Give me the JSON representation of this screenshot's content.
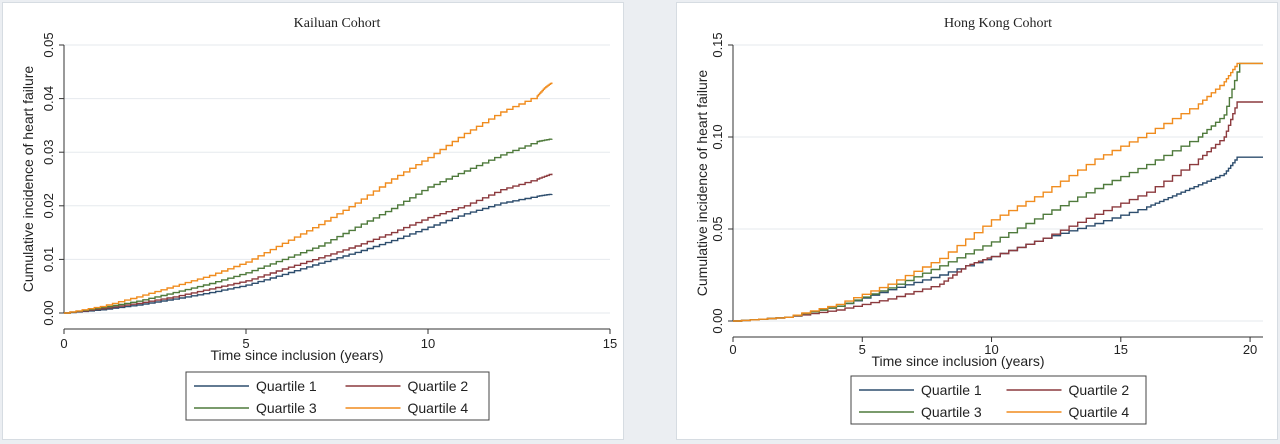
{
  "chart_data": [
    {
      "type": "line",
      "title": "Kailuan Cohort",
      "xlabel": "Time since inclusion (years)",
      "ylabel": "Cumulative incidence of heart failure",
      "xlim": [
        0,
        15
      ],
      "ylim": [
        0,
        0.05
      ],
      "xticks": [
        0,
        5,
        10,
        15
      ],
      "yticks": [
        0,
        0.01,
        0.02,
        0.03,
        0.04,
        0.05
      ],
      "yticklabels": [
        "0.00",
        "0.01",
        "0.02",
        "0.03",
        "0.04",
        "0.05"
      ],
      "grid": true,
      "legend_position": "bottom",
      "series": [
        {
          "name": "Quartile 1",
          "color": "#2e4e6e",
          "x": [
            0,
            1,
            2,
            3,
            4,
            5,
            6,
            7,
            8,
            9,
            10,
            11,
            12,
            13,
            13.4
          ],
          "y": [
            0,
            0.0006,
            0.0015,
            0.0026,
            0.0038,
            0.0052,
            0.0072,
            0.0093,
            0.0113,
            0.0135,
            0.016,
            0.0185,
            0.0205,
            0.0218,
            0.0222
          ]
        },
        {
          "name": "Quartile 2",
          "color": "#8c3a3e",
          "x": [
            0,
            1,
            2,
            3,
            4,
            5,
            6,
            7,
            8,
            9,
            10,
            11,
            12,
            13,
            13.4
          ],
          "y": [
            0,
            0.0008,
            0.0018,
            0.003,
            0.0045,
            0.006,
            0.0082,
            0.0103,
            0.0125,
            0.015,
            0.0178,
            0.02,
            0.023,
            0.025,
            0.026
          ]
        },
        {
          "name": "Quartile 3",
          "color": "#4f7a3c",
          "x": [
            0,
            1,
            2,
            3,
            4,
            5,
            6,
            7,
            8,
            9,
            10,
            11,
            12,
            13,
            13.4
          ],
          "y": [
            0,
            0.001,
            0.0022,
            0.0038,
            0.0055,
            0.0075,
            0.01,
            0.0125,
            0.016,
            0.0195,
            0.0235,
            0.0265,
            0.0295,
            0.032,
            0.0325
          ]
        },
        {
          "name": "Quartile 4",
          "color": "#f08c1e",
          "x": [
            0,
            1,
            2,
            3,
            4,
            5,
            6,
            7,
            8,
            9,
            10,
            11,
            12,
            13,
            13.2,
            13.4
          ],
          "y": [
            0,
            0.0012,
            0.003,
            0.005,
            0.007,
            0.0095,
            0.013,
            0.0165,
            0.0205,
            0.025,
            0.029,
            0.0335,
            0.0375,
            0.0405,
            0.042,
            0.043
          ]
        }
      ]
    },
    {
      "type": "line",
      "title": "Hong Kong Cohort",
      "xlabel": "Time since inclusion (years)",
      "ylabel": "Cumulative incidence of heart failure",
      "xlim": [
        0,
        20.5
      ],
      "ylim": [
        0,
        0.15
      ],
      "xticks": [
        0,
        5,
        10,
        15,
        20
      ],
      "yticks": [
        0,
        0.05,
        0.1,
        0.15
      ],
      "yticklabels": [
        "0.00",
        "0.05",
        "0.10",
        "0.15"
      ],
      "grid": true,
      "legend_position": "bottom",
      "series": [
        {
          "name": "Quartile 1",
          "color": "#2e4e6e",
          "x": [
            0,
            2,
            4,
            6,
            8,
            10,
            12,
            14,
            16,
            17,
            18,
            19,
            19.5,
            20.5
          ],
          "y": [
            0,
            0.002,
            0.008,
            0.017,
            0.025,
            0.035,
            0.045,
            0.053,
            0.062,
            0.068,
            0.074,
            0.08,
            0.089,
            0.089
          ]
        },
        {
          "name": "Quartile 2",
          "color": "#8c3a3e",
          "x": [
            0,
            2,
            4,
            6,
            8,
            9,
            10,
            12,
            14,
            16,
            18,
            19,
            19.5,
            20.5
          ],
          "y": [
            0,
            0.002,
            0.006,
            0.012,
            0.02,
            0.03,
            0.035,
            0.045,
            0.058,
            0.07,
            0.088,
            0.1,
            0.119,
            0.119
          ]
        },
        {
          "name": "Quartile 3",
          "color": "#4f7a3c",
          "x": [
            0,
            2,
            4,
            6,
            8,
            10,
            12,
            14,
            16,
            18,
            19,
            19.6,
            20.5
          ],
          "y": [
            0,
            0.002,
            0.008,
            0.018,
            0.03,
            0.043,
            0.058,
            0.072,
            0.085,
            0.1,
            0.112,
            0.14,
            0.14
          ]
        },
        {
          "name": "Quartile 4",
          "color": "#f08c1e",
          "x": [
            0,
            2,
            4,
            6,
            8,
            10,
            12,
            14,
            16,
            18,
            19,
            19.5,
            20.5
          ],
          "y": [
            0,
            0.002,
            0.009,
            0.02,
            0.034,
            0.055,
            0.07,
            0.088,
            0.102,
            0.118,
            0.13,
            0.14,
            0.14
          ]
        }
      ]
    }
  ]
}
